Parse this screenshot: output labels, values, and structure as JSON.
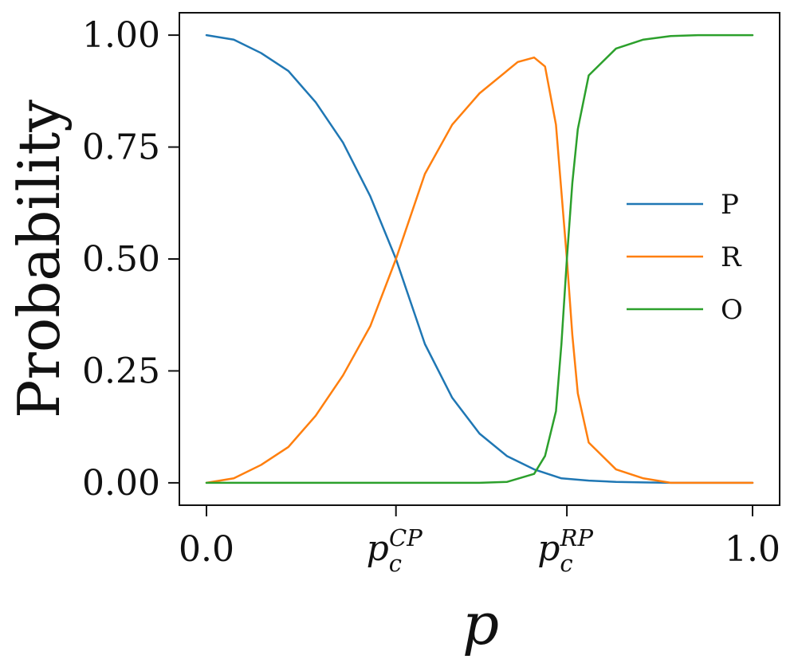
{
  "chart_data": {
    "type": "line",
    "xlabel": "p",
    "ylabel": "Probability",
    "xlim": [
      0.0,
      1.0
    ],
    "ylim": [
      -0.05,
      1.05
    ],
    "x_ticks": [
      {
        "value": 0.0,
        "label": "0.0"
      },
      {
        "value": 0.347,
        "label": "",
        "main": "p",
        "sub": "c",
        "sup": "CP"
      },
      {
        "value": 0.66,
        "label": "",
        "main": "p",
        "sub": "c",
        "sup": "RP"
      },
      {
        "value": 1.0,
        "label": "1.0"
      }
    ],
    "y_ticks": [
      {
        "value": 0.0,
        "label": "0.00"
      },
      {
        "value": 0.25,
        "label": "0.25"
      },
      {
        "value": 0.5,
        "label": "0.50"
      },
      {
        "value": 0.75,
        "label": "0.75"
      },
      {
        "value": 1.0,
        "label": "1.00"
      }
    ],
    "legend": {
      "placement": "right"
    },
    "colors": [
      "#1f77b4",
      "#ff7f0e",
      "#2ca02c"
    ],
    "series": [
      {
        "name": "P",
        "color": "#1f77b4",
        "x": [
          0.0,
          0.05,
          0.1,
          0.15,
          0.2,
          0.25,
          0.3,
          0.347,
          0.4,
          0.45,
          0.5,
          0.55,
          0.6,
          0.65,
          0.7,
          0.75,
          0.8,
          0.85,
          0.9,
          0.95,
          1.0
        ],
        "y": [
          1.0,
          0.99,
          0.96,
          0.92,
          0.85,
          0.76,
          0.64,
          0.5,
          0.31,
          0.19,
          0.11,
          0.06,
          0.03,
          0.01,
          0.005,
          0.002,
          0.001,
          0.0,
          0.0,
          0.0,
          0.0
        ]
      },
      {
        "name": "R",
        "color": "#ff7f0e",
        "x": [
          0.0,
          0.05,
          0.1,
          0.15,
          0.2,
          0.25,
          0.3,
          0.347,
          0.4,
          0.45,
          0.5,
          0.55,
          0.57,
          0.6,
          0.62,
          0.64,
          0.65,
          0.66,
          0.67,
          0.68,
          0.7,
          0.75,
          0.8,
          0.85,
          0.9,
          0.95,
          1.0
        ],
        "y": [
          0.0,
          0.01,
          0.04,
          0.08,
          0.15,
          0.24,
          0.35,
          0.5,
          0.69,
          0.8,
          0.87,
          0.92,
          0.94,
          0.95,
          0.93,
          0.8,
          0.65,
          0.5,
          0.33,
          0.2,
          0.09,
          0.03,
          0.01,
          0.0,
          0.0,
          0.0,
          0.0
        ]
      },
      {
        "name": "O",
        "color": "#2ca02c",
        "x": [
          0.0,
          0.1,
          0.2,
          0.3,
          0.4,
          0.5,
          0.55,
          0.6,
          0.62,
          0.64,
          0.65,
          0.66,
          0.67,
          0.68,
          0.7,
          0.75,
          0.8,
          0.85,
          0.9,
          0.95,
          1.0
        ],
        "y": [
          0.0,
          0.0,
          0.0,
          0.0,
          0.0,
          0.0,
          0.002,
          0.02,
          0.06,
          0.16,
          0.31,
          0.5,
          0.67,
          0.79,
          0.91,
          0.97,
          0.99,
          0.998,
          1.0,
          1.0,
          1.0
        ]
      }
    ]
  }
}
